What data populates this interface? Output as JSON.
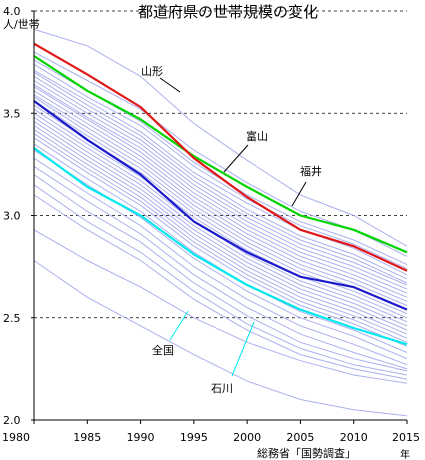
{
  "chart_data": {
    "type": "line",
    "title": "都道府県の世帯規模の変化",
    "ylabel": "人/世帯",
    "xlabel_unit": "年",
    "source": "総務省「国勢調査」",
    "x": [
      1980,
      1985,
      1990,
      1995,
      2000,
      2005,
      2010,
      2015
    ],
    "x_tick_labels": [
      "1980",
      "1985",
      "1990",
      "1995",
      "2000",
      "2005",
      "2010",
      "2015"
    ],
    "ylim": [
      2.0,
      4.0
    ],
    "y_ticks": [
      2.0,
      2.5,
      3.0,
      3.5,
      4.0
    ],
    "y_tick_labels": [
      "2.0",
      "2.5",
      "3.0",
      "3.5",
      "4.0"
    ],
    "grid": "horizontal dashed",
    "colors": {
      "background_series": "#aab0ee",
      "yamagata": "#00d400",
      "toyama": "#e01818",
      "fukui": "#00d400",
      "national": "#1a1acc",
      "ishikawa": "#00e8f0",
      "grid": "#000000"
    },
    "series": [
      {
        "name": "山形",
        "color": "#00d400",
        "values": [
          3.78,
          3.61,
          3.47,
          3.29,
          3.14,
          3.0,
          2.93,
          2.82
        ]
      },
      {
        "name": "富山",
        "color": "#e01818",
        "values": [
          3.84,
          3.69,
          3.53,
          3.28,
          3.09,
          2.93,
          2.85,
          2.73
        ]
      },
      {
        "name": "福井",
        "color": "#00d400",
        "values": [
          3.78,
          3.61,
          3.47,
          3.29,
          3.14,
          3.0,
          2.93,
          2.82
        ]
      },
      {
        "name": "全国",
        "color": "#1a1acc",
        "values": [
          3.56,
          3.37,
          3.2,
          2.97,
          2.82,
          2.7,
          2.65,
          2.54
        ]
      },
      {
        "name": "石川",
        "color": "#00e8f0",
        "values": [
          3.33,
          3.14,
          3.0,
          2.81,
          2.66,
          2.54,
          2.45,
          2.37
        ]
      }
    ],
    "background_series": [
      [
        3.91,
        3.83,
        3.68,
        3.45,
        3.27,
        3.1,
        3.0,
        2.85
      ],
      [
        3.8,
        3.66,
        3.52,
        3.32,
        3.16,
        3.02,
        2.93,
        2.8
      ],
      [
        3.76,
        3.61,
        3.46,
        3.26,
        3.1,
        2.97,
        2.88,
        2.76
      ],
      [
        3.74,
        3.58,
        3.44,
        3.24,
        3.08,
        2.95,
        2.86,
        2.74
      ],
      [
        3.71,
        3.56,
        3.41,
        3.21,
        3.06,
        2.93,
        2.84,
        2.71
      ],
      [
        3.7,
        3.54,
        3.39,
        3.19,
        3.03,
        2.9,
        2.81,
        2.69
      ],
      [
        3.68,
        3.52,
        3.37,
        3.17,
        3.01,
        2.88,
        2.79,
        2.67
      ],
      [
        3.66,
        3.5,
        3.35,
        3.15,
        2.99,
        2.86,
        2.77,
        2.66
      ],
      [
        3.64,
        3.48,
        3.33,
        3.13,
        2.97,
        2.84,
        2.75,
        2.64
      ],
      [
        3.63,
        3.47,
        3.31,
        3.11,
        2.95,
        2.82,
        2.73,
        2.62
      ],
      [
        3.61,
        3.45,
        3.29,
        3.09,
        2.93,
        2.8,
        2.71,
        2.6
      ],
      [
        3.59,
        3.43,
        3.27,
        3.07,
        2.91,
        2.78,
        2.69,
        2.58
      ],
      [
        3.58,
        3.41,
        3.25,
        3.05,
        2.89,
        2.76,
        2.67,
        2.56
      ],
      [
        3.56,
        3.39,
        3.23,
        3.03,
        2.87,
        2.74,
        2.65,
        2.54
      ],
      [
        3.54,
        3.37,
        3.21,
        3.01,
        2.85,
        2.72,
        2.63,
        2.52
      ],
      [
        3.52,
        3.35,
        3.19,
        2.99,
        2.83,
        2.7,
        2.61,
        2.5
      ],
      [
        3.5,
        3.33,
        3.17,
        2.97,
        2.81,
        2.68,
        2.59,
        2.48
      ],
      [
        3.48,
        3.31,
        3.15,
        2.95,
        2.79,
        2.66,
        2.57,
        2.46
      ],
      [
        3.46,
        3.29,
        3.13,
        2.93,
        2.77,
        2.64,
        2.55,
        2.44
      ],
      [
        3.44,
        3.27,
        3.11,
        2.91,
        2.75,
        2.62,
        2.53,
        2.42
      ],
      [
        3.42,
        3.25,
        3.09,
        2.89,
        2.73,
        2.6,
        2.51,
        2.4
      ],
      [
        3.4,
        3.23,
        3.07,
        2.87,
        2.71,
        2.58,
        2.49,
        2.38
      ],
      [
        3.38,
        3.21,
        3.05,
        2.85,
        2.69,
        2.56,
        2.47,
        2.36
      ],
      [
        3.35,
        3.18,
        3.02,
        2.82,
        2.66,
        2.53,
        2.44,
        2.33
      ],
      [
        3.32,
        3.15,
        2.99,
        2.79,
        2.63,
        2.5,
        2.41,
        2.3
      ],
      [
        3.28,
        3.11,
        2.95,
        2.75,
        2.59,
        2.46,
        2.37,
        2.27
      ],
      [
        3.24,
        3.07,
        2.91,
        2.71,
        2.55,
        2.42,
        2.33,
        2.25
      ],
      [
        3.2,
        3.02,
        2.87,
        2.67,
        2.51,
        2.38,
        2.3,
        2.24
      ],
      [
        3.15,
        2.97,
        2.82,
        2.63,
        2.47,
        2.35,
        2.27,
        2.22
      ],
      [
        3.1,
        2.93,
        2.78,
        2.59,
        2.44,
        2.32,
        2.25,
        2.2
      ],
      [
        2.93,
        2.78,
        2.65,
        2.5,
        2.38,
        2.29,
        2.22,
        2.18
      ],
      [
        2.78,
        2.6,
        2.46,
        2.32,
        2.19,
        2.1,
        2.05,
        2.02
      ]
    ],
    "annotations": [
      {
        "label": "山形",
        "series": "山形"
      },
      {
        "label": "富山",
        "series": "富山"
      },
      {
        "label": "福井",
        "series": "福井"
      },
      {
        "label": "全国",
        "series": "全国"
      },
      {
        "label": "石川",
        "series": "石川"
      }
    ]
  }
}
